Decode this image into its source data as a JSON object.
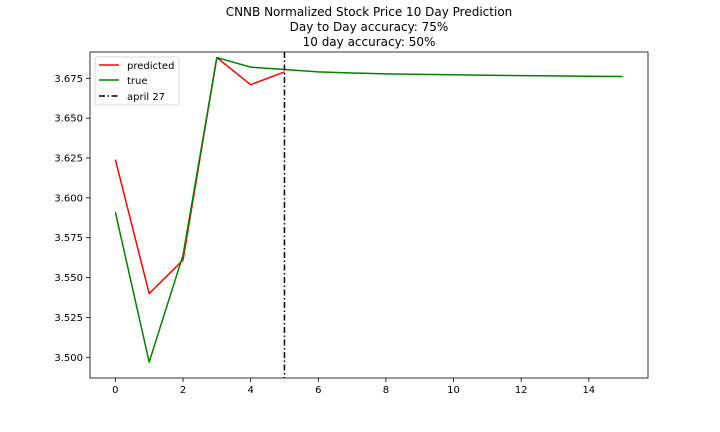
{
  "chart_data": {
    "type": "line",
    "title": "CNNB Normalized Stock Price 10 Day Prediction",
    "subtitle_lines": [
      "Day to Day accuracy: 75%",
      "10 day accuracy: 50%"
    ],
    "xlabel": "",
    "ylabel": "",
    "xlim": [
      -0.75,
      15.75
    ],
    "ylim": [
      3.487,
      3.6915
    ],
    "x_ticks": [
      0,
      2,
      4,
      6,
      8,
      10,
      12,
      14
    ],
    "x_tick_labels": [
      "0",
      "2",
      "4",
      "6",
      "8",
      "10",
      "12",
      "14"
    ],
    "y_ticks": [
      3.5,
      3.525,
      3.55,
      3.575,
      3.6,
      3.625,
      3.65,
      3.675
    ],
    "y_tick_labels": [
      "3.500",
      "3.525",
      "3.550",
      "3.575",
      "3.600",
      "3.625",
      "3.650",
      "3.675"
    ],
    "grid": false,
    "legend_position": "top-left",
    "series": [
      {
        "name": "predicted",
        "color": "#ff0000",
        "style": "solid",
        "x": [
          0,
          1,
          2,
          3,
          4,
          5
        ],
        "values": [
          3.624,
          3.54,
          3.561,
          3.688,
          3.671,
          3.679
        ]
      },
      {
        "name": "true",
        "color": "#008000",
        "style": "solid",
        "x": [
          0,
          1,
          2,
          3,
          4,
          5,
          6,
          7,
          8,
          9,
          10,
          11,
          12,
          13,
          14,
          15
        ],
        "values": [
          3.591,
          3.497,
          3.564,
          3.688,
          3.682,
          3.6805,
          3.679,
          3.6783,
          3.6778,
          3.6775,
          3.6772,
          3.6769,
          3.6767,
          3.6765,
          3.6763,
          3.6761
        ]
      }
    ],
    "vlines": [
      {
        "name": "april 27",
        "x": 5,
        "color": "#000000",
        "style": "dashdot"
      }
    ]
  }
}
